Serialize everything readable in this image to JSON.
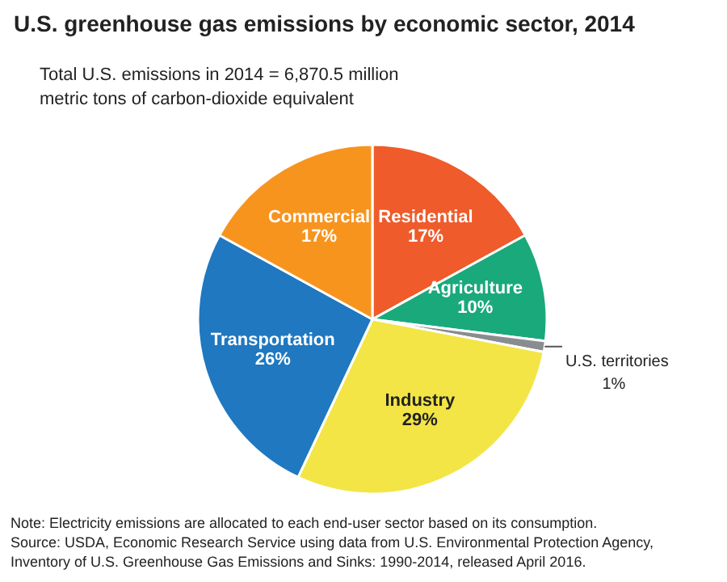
{
  "chart_data": {
    "type": "pie",
    "title": "U.S. greenhouse gas emissions by economic sector, 2014",
    "subtitle": "Total U.S. emissions in 2014 = 6,870.5 million metric tons of carbon-dioxide equivalent",
    "categories": [
      "Residential",
      "Agriculture",
      "U.S. territories",
      "Industry",
      "Transportation",
      "Commercial"
    ],
    "values": [
      17,
      10,
      1,
      29,
      26,
      17
    ],
    "colors": [
      "#ef5b2a",
      "#1aa97b",
      "#8a8d8f",
      "#f3e545",
      "#1f78c0",
      "#f7941e"
    ],
    "value_labels": [
      "17%",
      "10%",
      "1%",
      "29%",
      "26%",
      "17%"
    ],
    "annotations": [
      "Note: Electricity emissions are allocated to each end-user sector based on its consumption.",
      "Source: USDA, Economic Research Service using data from U.S. Environmental Protection Agency, Inventory of U.S. Greenhouse Gas Emissions and Sinks: 1990-2014, released April 2016."
    ]
  }
}
